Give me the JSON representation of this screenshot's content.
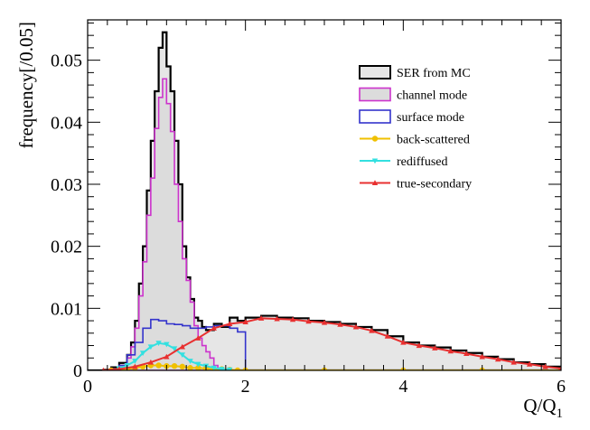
{
  "chart_data": {
    "type": "line",
    "title": "",
    "xlabel": "Q/Q",
    "xlabel_subscript": "1",
    "ylabel": "frequency[/0.05]",
    "xlim": [
      0,
      6
    ],
    "ylim": [
      0,
      0.0565
    ],
    "x_ticks": [
      0,
      2,
      4,
      6
    ],
    "x_tick_labels": [
      "0",
      "2",
      "4",
      "6"
    ],
    "y_ticks": [
      0,
      0.01,
      0.02,
      0.03,
      0.04,
      0.05
    ],
    "y_tick_labels": [
      "0",
      "0.01",
      "0.02",
      "0.03",
      "0.04",
      "0.05"
    ],
    "grid": false,
    "legend_position": "top-right",
    "bin_width": 0.05,
    "series": [
      {
        "name": "SER from MC",
        "style": "step-filled",
        "color": "#000000",
        "fill": "#e6e6e6",
        "x": [
          0.0,
          0.2,
          0.3,
          0.4,
          0.5,
          0.55,
          0.6,
          0.65,
          0.7,
          0.75,
          0.8,
          0.85,
          0.9,
          0.95,
          1.0,
          1.05,
          1.1,
          1.15,
          1.2,
          1.25,
          1.3,
          1.35,
          1.4,
          1.45,
          1.5,
          1.55,
          1.6,
          1.7,
          1.8,
          1.9,
          2.0,
          2.2,
          2.4,
          2.6,
          2.8,
          3.0,
          3.2,
          3.4,
          3.6,
          3.8,
          4.0,
          4.2,
          4.4,
          4.6,
          4.8,
          5.0,
          5.2,
          5.4,
          5.6,
          5.8,
          6.0
        ],
        "values": [
          0.0,
          0.0001,
          0.0005,
          0.0012,
          0.0025,
          0.0045,
          0.008,
          0.014,
          0.02,
          0.029,
          0.037,
          0.045,
          0.052,
          0.0545,
          0.049,
          0.045,
          0.037,
          0.03,
          0.02,
          0.015,
          0.0115,
          0.0085,
          0.008,
          0.007,
          0.0065,
          0.0065,
          0.0075,
          0.007,
          0.0085,
          0.008,
          0.0085,
          0.0088,
          0.0085,
          0.0084,
          0.008,
          0.0078,
          0.0075,
          0.007,
          0.0065,
          0.0055,
          0.0045,
          0.004,
          0.0037,
          0.0032,
          0.0028,
          0.0022,
          0.0018,
          0.0013,
          0.001,
          0.0006,
          0.0003
        ]
      },
      {
        "name": "channel mode",
        "style": "step-filled",
        "color": "#cc33cc",
        "fill": "#dcdcdc",
        "x": [
          0.3,
          0.4,
          0.5,
          0.55,
          0.6,
          0.65,
          0.7,
          0.75,
          0.8,
          0.85,
          0.9,
          0.95,
          1.0,
          1.05,
          1.1,
          1.15,
          1.2,
          1.25,
          1.3,
          1.35,
          1.4,
          1.45,
          1.5,
          1.55,
          1.6,
          1.65
        ],
        "values": [
          0.0002,
          0.0008,
          0.002,
          0.0038,
          0.0068,
          0.012,
          0.0175,
          0.025,
          0.031,
          0.039,
          0.044,
          0.047,
          0.043,
          0.0385,
          0.03,
          0.024,
          0.018,
          0.0145,
          0.011,
          0.0072,
          0.0052,
          0.004,
          0.003,
          0.002,
          0.0008,
          0.0002
        ]
      },
      {
        "name": "surface mode",
        "style": "step",
        "color": "#3333cc",
        "x": [
          0.3,
          0.4,
          0.5,
          0.6,
          0.7,
          0.8,
          0.9,
          1.0,
          1.1,
          1.2,
          1.3,
          1.4,
          1.5,
          1.6,
          1.7,
          1.8,
          1.9
        ],
        "values": [
          0.0002,
          0.0008,
          0.0025,
          0.0045,
          0.0068,
          0.0082,
          0.008,
          0.0075,
          0.0074,
          0.0072,
          0.0068,
          0.0068,
          0.007,
          0.0072,
          0.0072,
          0.0068,
          0.0062
        ]
      },
      {
        "name": "back-scattered",
        "style": "line-markers",
        "marker": "circle",
        "color": "#f0c000",
        "x": [
          0.3,
          0.4,
          0.5,
          0.6,
          0.7,
          0.8,
          0.9,
          1.0,
          1.1,
          1.2,
          1.3,
          1.4,
          1.5,
          1.6,
          1.7,
          1.8,
          1.9,
          2.0,
          3.0,
          4.0,
          5.0,
          6.0
        ],
        "values": [
          0.0,
          0.0001,
          0.0002,
          0.0004,
          0.0006,
          0.0008,
          0.0008,
          0.0007,
          0.0007,
          0.0006,
          0.0004,
          0.0004,
          0.0003,
          0.0002,
          0.0002,
          0.0001,
          0.0,
          0.0,
          0.0,
          0.0,
          0.0,
          0.0
        ]
      },
      {
        "name": "rediffused",
        "style": "line-markers",
        "marker": "triangle-down",
        "color": "#33e0e0",
        "x": [
          0.4,
          0.5,
          0.6,
          0.7,
          0.8,
          0.9,
          1.0,
          1.1,
          1.2,
          1.3,
          1.4,
          1.5,
          1.6,
          1.7,
          1.8
        ],
        "values": [
          0.0003,
          0.0008,
          0.0015,
          0.0028,
          0.0038,
          0.0044,
          0.0042,
          0.0035,
          0.0025,
          0.0015,
          0.001,
          0.0007,
          0.0004,
          0.0002,
          0.0001
        ]
      },
      {
        "name": "true-secondary",
        "style": "line-markers",
        "marker": "triangle-up",
        "color": "#e83030",
        "x": [
          0.2,
          0.4,
          0.6,
          0.8,
          1.0,
          1.2,
          1.4,
          1.6,
          1.8,
          2.0,
          2.2,
          2.4,
          2.6,
          2.8,
          3.0,
          3.2,
          3.4,
          3.6,
          3.8,
          4.0,
          4.2,
          4.4,
          4.6,
          4.8,
          5.0,
          5.2,
          5.4,
          5.6,
          5.8,
          6.0
        ],
        "values": [
          0.0,
          0.0002,
          0.0006,
          0.0013,
          0.0022,
          0.0038,
          0.0052,
          0.0068,
          0.0075,
          0.0078,
          0.0084,
          0.0083,
          0.0082,
          0.0079,
          0.0077,
          0.0074,
          0.007,
          0.0064,
          0.0055,
          0.0045,
          0.004,
          0.0036,
          0.0031,
          0.0027,
          0.0022,
          0.0018,
          0.0013,
          0.001,
          0.0006,
          0.0003
        ]
      }
    ]
  }
}
